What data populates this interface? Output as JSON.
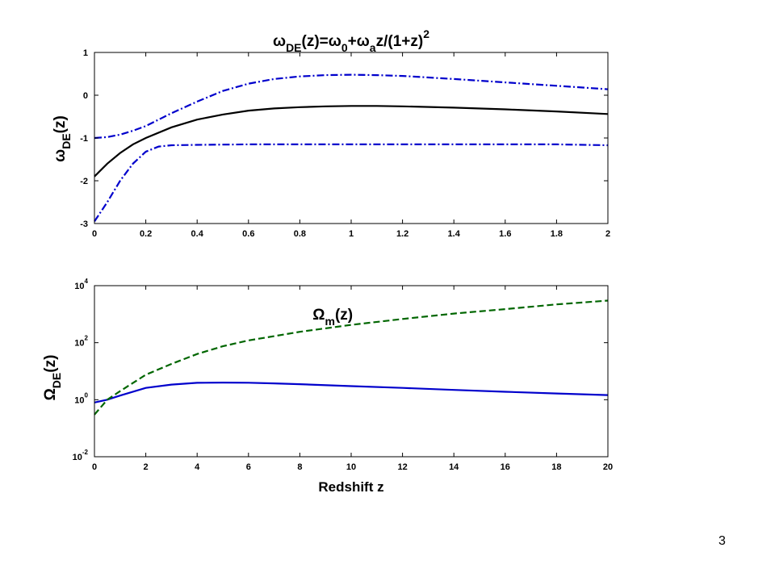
{
  "page_number": "3",
  "chart_data": [
    {
      "type": "line",
      "title": {
        "omega": "ω",
        "sub1": "DE",
        "mid1": "(z)=",
        "omega2": "ω",
        "sub2": "0",
        "mid2": "+",
        "omega3": "ω",
        "sub3": "a",
        "mid3": "z/(1+z)",
        "sup": "2"
      },
      "xlabel": "",
      "ylabel": {
        "symbol": "ω",
        "sub": "DE",
        "tail": "(z)"
      },
      "xlim": [
        0,
        2
      ],
      "ylim": [
        -3,
        1
      ],
      "yscale": "linear",
      "xticks": [
        "0",
        "0.2",
        "0.4",
        "0.6",
        "0.8",
        "1",
        "1.2",
        "1.4",
        "1.6",
        "1.8",
        "2"
      ],
      "yticks": [
        "-3",
        "-2",
        "-1",
        "0",
        "1"
      ],
      "grid": false,
      "series": [
        {
          "style": "solid",
          "color": "#000000",
          "x": [
            0,
            0.05,
            0.1,
            0.15,
            0.2,
            0.3,
            0.4,
            0.5,
            0.6,
            0.7,
            0.8,
            0.9,
            1.0,
            1.1,
            1.2,
            1.4,
            1.6,
            1.8,
            2.0
          ],
          "y": [
            -1.9,
            -1.6,
            -1.35,
            -1.15,
            -1.0,
            -0.75,
            -0.57,
            -0.45,
            -0.36,
            -0.31,
            -0.28,
            -0.26,
            -0.25,
            -0.25,
            -0.26,
            -0.29,
            -0.33,
            -0.38,
            -0.44
          ]
        },
        {
          "style": "dashdot",
          "color": "#0000cc",
          "x": [
            0,
            0.05,
            0.1,
            0.15,
            0.2,
            0.3,
            0.4,
            0.5,
            0.6,
            0.7,
            0.8,
            0.9,
            1.0,
            1.1,
            1.2,
            1.4,
            1.6,
            1.8,
            2.0
          ],
          "y": [
            -1.0,
            -0.98,
            -0.92,
            -0.83,
            -0.72,
            -0.42,
            -0.15,
            0.1,
            0.27,
            0.38,
            0.44,
            0.47,
            0.48,
            0.47,
            0.45,
            0.38,
            0.3,
            0.22,
            0.14
          ]
        },
        {
          "style": "dashdot",
          "color": "#0000cc",
          "x": [
            0,
            0.05,
            0.1,
            0.15,
            0.2,
            0.25,
            0.3,
            0.4,
            0.6,
            0.8,
            1.0,
            1.2,
            1.4,
            1.6,
            1.8,
            2.0
          ],
          "y": [
            -2.95,
            -2.5,
            -2.0,
            -1.6,
            -1.32,
            -1.2,
            -1.17,
            -1.16,
            -1.15,
            -1.15,
            -1.15,
            -1.15,
            -1.15,
            -1.15,
            -1.15,
            -1.17
          ]
        }
      ]
    },
    {
      "type": "line",
      "xlabel": "Redshift z",
      "ylabel": {
        "symbol": "Ω",
        "sub": "DE",
        "tail": "(z)"
      },
      "xlim": [
        0,
        20
      ],
      "ylim": [
        0.01,
        10000
      ],
      "yscale": "log",
      "xticks": [
        "0",
        "2",
        "4",
        "6",
        "8",
        "10",
        "12",
        "14",
        "16",
        "18",
        "20"
      ],
      "yticks": [
        {
          "base": "10",
          "exp": "-2"
        },
        {
          "base": "10",
          "exp": "0"
        },
        {
          "base": "10",
          "exp": "2"
        },
        {
          "base": "10",
          "exp": "4"
        }
      ],
      "grid": false,
      "annotation": {
        "symbol": "Ω",
        "sub": "m",
        "tail": "(z)",
        "x": 8.5,
        "y": 650
      },
      "series": [
        {
          "style": "solid",
          "color": "#0000cc",
          "x": [
            0,
            0.5,
            1,
            2,
            3,
            4,
            5,
            6,
            7,
            8,
            10,
            12,
            14,
            16,
            18,
            20
          ],
          "y": [
            0.8,
            1.0,
            1.4,
            2.6,
            3.4,
            3.9,
            4.0,
            3.95,
            3.75,
            3.5,
            3.0,
            2.6,
            2.2,
            1.9,
            1.65,
            1.45
          ]
        },
        {
          "style": "dashed",
          "color": "#006600",
          "x": [
            0,
            0.5,
            1,
            2,
            3,
            4,
            5,
            6,
            8,
            10,
            12,
            14,
            16,
            18,
            20
          ],
          "y": [
            0.3,
            1.0,
            2.0,
            7.5,
            18,
            40,
            75,
            120,
            240,
            420,
            680,
            1050,
            1500,
            2200,
            3000
          ]
        }
      ]
    }
  ]
}
